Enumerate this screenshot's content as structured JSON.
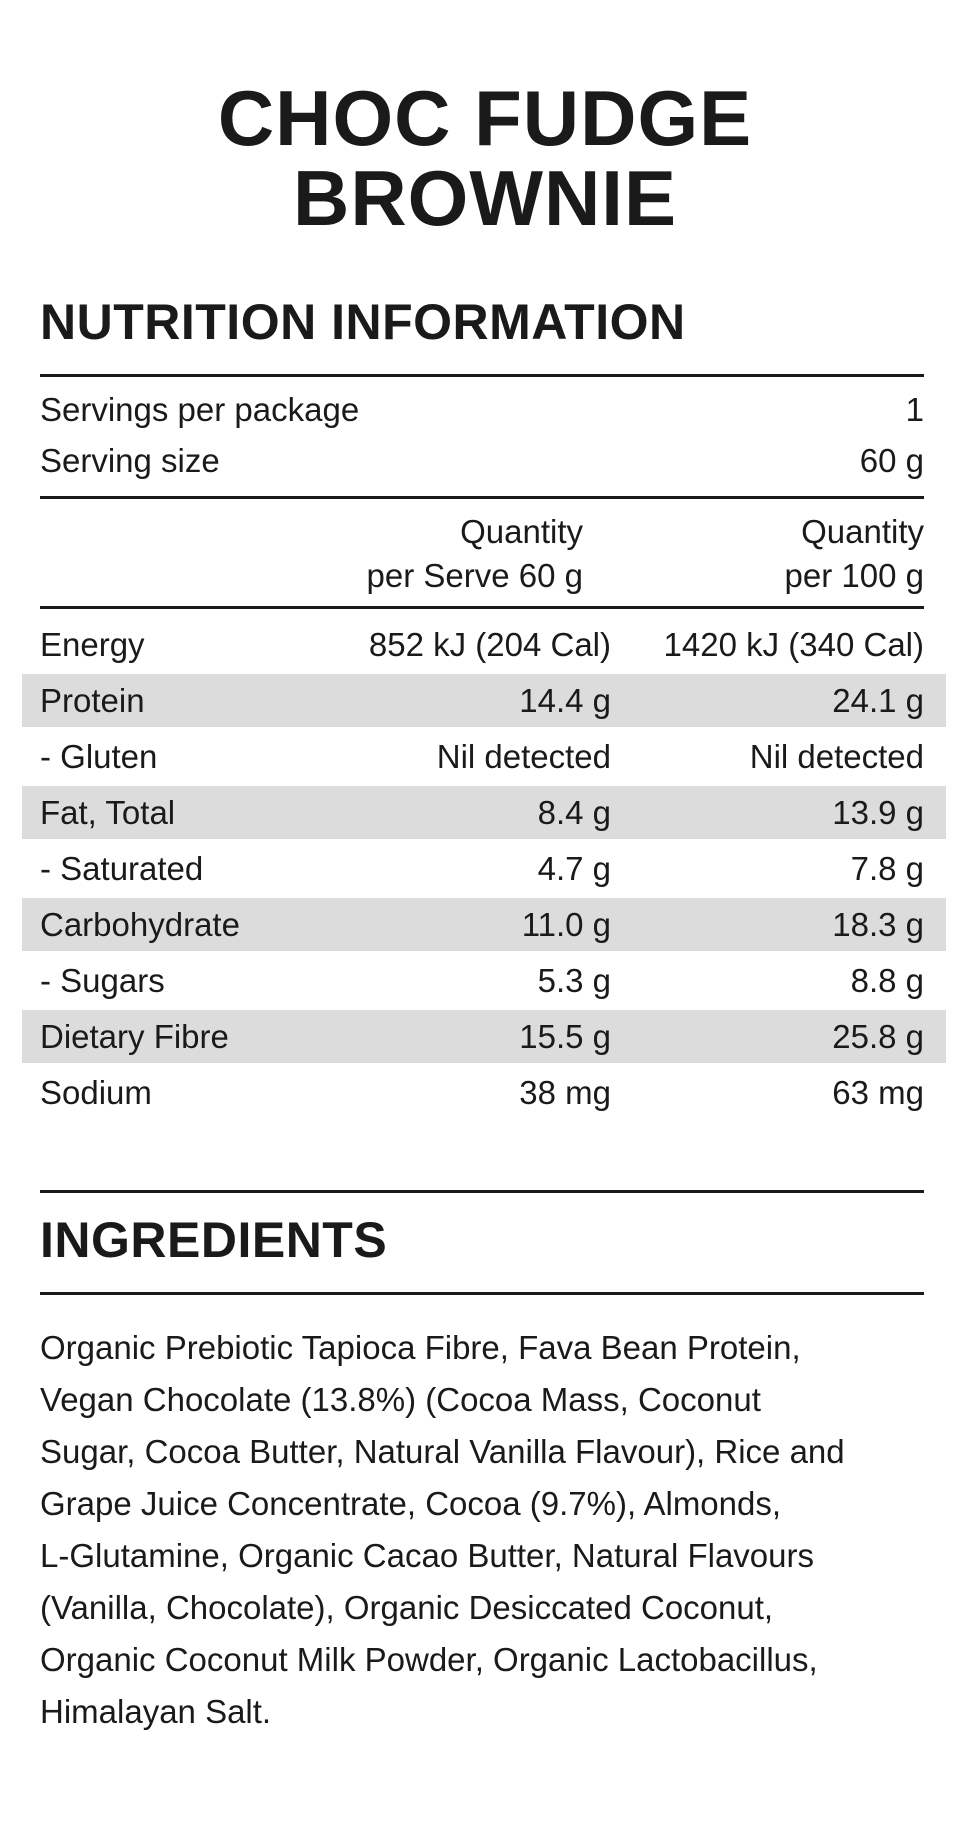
{
  "title": {
    "line1": "CHOC FUDGE",
    "line2": "BROWNIE"
  },
  "nutrition": {
    "heading": "NUTRITION INFORMATION",
    "servings_label": "Servings per package",
    "servings_value": "1",
    "serving_size_label": "Serving size",
    "serving_size_value": "60 g",
    "col_serve_line1": "Quantity",
    "col_serve_line2": "per Serve 60 g",
    "col_100_line1": "Quantity",
    "col_100_line2": "per 100 g",
    "rows": [
      {
        "label": "Energy",
        "per_serve": "852 kJ (204 Cal)",
        "per_100": "1420 kJ (340 Cal)",
        "shaded": false
      },
      {
        "label": "Protein",
        "per_serve": "14.4 g",
        "per_100": "24.1 g",
        "shaded": true
      },
      {
        "label": "- Gluten",
        "per_serve": "Nil detected",
        "per_100": "Nil detected",
        "shaded": false
      },
      {
        "label": "Fat, Total",
        "per_serve": "8.4 g",
        "per_100": "13.9 g",
        "shaded": true
      },
      {
        "label": "- Saturated",
        "per_serve": "4.7 g",
        "per_100": "7.8 g",
        "shaded": false
      },
      {
        "label": "Carbohydrate",
        "per_serve": "11.0 g",
        "per_100": "18.3 g",
        "shaded": true
      },
      {
        "label": "- Sugars",
        "per_serve": "5.3 g",
        "per_100": "8.8 g",
        "shaded": false
      },
      {
        "label": "Dietary Fibre",
        "per_serve": "15.5 g",
        "per_100": "25.8 g",
        "shaded": true
      },
      {
        "label": "Sodium",
        "per_serve": "38 mg",
        "per_100": "63 mg",
        "shaded": false
      }
    ]
  },
  "ingredients": {
    "heading": "INGREDIENTS",
    "lines": [
      "Organic Prebiotic Tapioca Fibre, Fava Bean Protein,",
      "Vegan Chocolate (13.8%) (Cocoa Mass, Coconut",
      "Sugar, Cocoa Butter, Natural Vanilla Flavour), Rice and",
      "Grape Juice Concentrate, Cocoa (9.7%), Almonds,",
      "L-Glutamine, Organic Cacao Butter, Natural Flavours",
      "(Vanilla, Chocolate), Organic Desiccated Coconut,",
      "Organic Coconut Milk Powder, Organic Lactobacillus,",
      "Himalayan Salt."
    ]
  },
  "colors": {
    "text": "#1a1a1a",
    "row_shade": "#dcdcdc",
    "background": "#ffffff"
  }
}
